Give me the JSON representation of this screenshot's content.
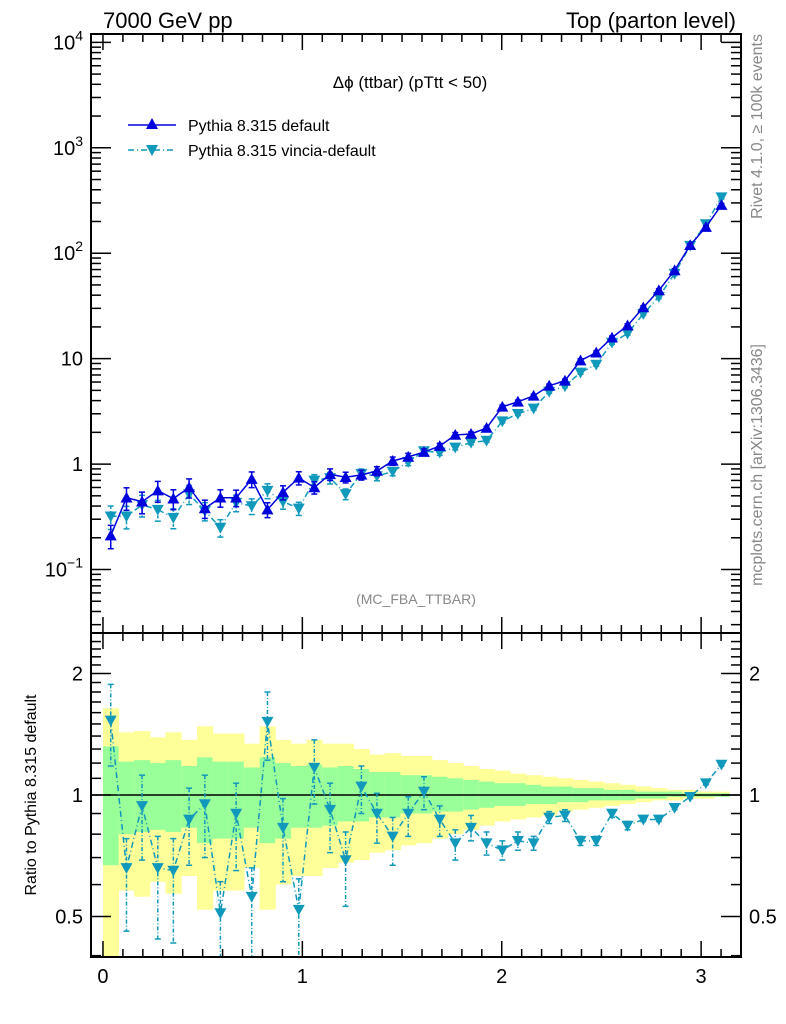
{
  "header": {
    "left": "7000 GeV pp",
    "right": "Top (parton level)"
  },
  "side_labels": {
    "upper": "Rivet 4.1.0, ≥ 100k events",
    "lower": "mcplots.cern.ch [arXiv:1306.3436]"
  },
  "chart_data": [
    {
      "type": "line",
      "panel": "main",
      "title": "Δϕ (ttbar) (pTtt < 50)",
      "analysis_label": "(MC_FBA_TTBAR)",
      "xlabel": "",
      "ylabel": "",
      "yscale": "log",
      "xlim": [
        -0.06,
        3.2
      ],
      "ylim": [
        0.025,
        12000
      ],
      "yticks": [
        {
          "value": 0.1,
          "label": "10^-1"
        },
        {
          "value": 1,
          "label": "1"
        },
        {
          "value": 10,
          "label": "10"
        },
        {
          "value": 100,
          "label": "10^2"
        },
        {
          "value": 1000,
          "label": "10^3"
        },
        {
          "value": 10000,
          "label": "10^4"
        }
      ],
      "legend": {
        "position": "top-left",
        "entries": [
          "Pythia 8.315 default",
          "Pythia 8.315 vincia-default"
        ]
      },
      "x": [
        0.039,
        0.118,
        0.196,
        0.275,
        0.353,
        0.432,
        0.511,
        0.589,
        0.668,
        0.746,
        0.825,
        0.903,
        0.982,
        1.06,
        1.139,
        1.217,
        1.296,
        1.374,
        1.453,
        1.531,
        1.61,
        1.689,
        1.767,
        1.846,
        1.924,
        2.003,
        2.081,
        2.16,
        2.238,
        2.317,
        2.395,
        2.474,
        2.553,
        2.631,
        2.71,
        2.788,
        2.867,
        2.945,
        3.024,
        3.102
      ],
      "series": [
        {
          "name": "Pythia 8.315 default",
          "color": "#0000dd",
          "marker": "triangle-up",
          "linestyle": "solid",
          "values": [
            0.21,
            0.48,
            0.44,
            0.56,
            0.47,
            0.6,
            0.38,
            0.48,
            0.48,
            0.72,
            0.37,
            0.54,
            0.74,
            0.6,
            0.8,
            0.75,
            0.79,
            0.86,
            1.07,
            1.17,
            1.3,
            1.48,
            1.89,
            1.93,
            2.2,
            3.49,
            3.9,
            4.44,
            5.53,
            6.17,
            9.6,
            11.4,
            15.8,
            20.6,
            30.6,
            44.4,
            68.7,
            119,
            177,
            286
          ],
          "rel_err": 0.25
        },
        {
          "name": "Pythia 8.315 vincia-default",
          "color": "#1199bb",
          "marker": "triangle-down",
          "linestyle": "dashdot",
          "values": [
            0.32,
            0.32,
            0.41,
            0.37,
            0.31,
            0.52,
            0.36,
            0.25,
            0.43,
            0.4,
            0.56,
            0.44,
            0.38,
            0.7,
            0.74,
            0.52,
            0.81,
            0.77,
            0.85,
            1.05,
            1.33,
            1.29,
            1.44,
            1.6,
            1.67,
            2.55,
            3.0,
            3.37,
            4.87,
            5.49,
            7.4,
            8.8,
            14.2,
            17.3,
            26.6,
            38.6,
            63.9,
            118,
            189,
            340
          ],
          "rel_err": 0.25
        }
      ]
    },
    {
      "type": "line",
      "panel": "ratio",
      "xlabel": "",
      "ylabel": "Ratio to Pythia 8.315 default",
      "yscale": "log",
      "xlim": [
        -0.06,
        3.2
      ],
      "ylim": [
        0.397,
        2.52
      ],
      "yticks": [
        {
          "value": 0.5,
          "label": "0.5"
        },
        {
          "value": 1,
          "label": "1"
        },
        {
          "value": 2,
          "label": "2"
        }
      ],
      "xticks": [
        {
          "value": 0,
          "label": "0"
        },
        {
          "value": 1,
          "label": "1"
        },
        {
          "value": 2,
          "label": "2"
        },
        {
          "value": 3,
          "label": "3"
        }
      ],
      "reference_line": 1,
      "bands": {
        "yellow_color": "#ffff99",
        "green_color": "#99ff99",
        "yellow_upper": [
          1.64,
          1.43,
          1.44,
          1.39,
          1.43,
          1.37,
          1.48,
          1.42,
          1.42,
          1.34,
          1.48,
          1.37,
          1.34,
          1.37,
          1.34,
          1.34,
          1.3,
          1.26,
          1.27,
          1.25,
          1.25,
          1.22,
          1.2,
          1.18,
          1.16,
          1.15,
          1.13,
          1.12,
          1.11,
          1.1,
          1.09,
          1.08,
          1.07,
          1.06,
          1.05,
          1.04,
          1.03,
          1.03,
          1.02,
          1.02
        ],
        "green_upper": [
          1.32,
          1.21,
          1.22,
          1.2,
          1.22,
          1.18,
          1.24,
          1.21,
          1.21,
          1.17,
          1.24,
          1.2,
          1.18,
          1.19,
          1.17,
          1.18,
          1.16,
          1.14,
          1.14,
          1.12,
          1.12,
          1.11,
          1.1,
          1.09,
          1.08,
          1.07,
          1.07,
          1.06,
          1.05,
          1.05,
          1.04,
          1.04,
          1.03,
          1.03,
          1.02,
          1.02,
          1.02,
          1.01,
          1.01,
          1.01
        ],
        "green_lower": [
          0.67,
          0.8,
          0.81,
          0.82,
          0.81,
          0.83,
          0.76,
          0.78,
          0.78,
          0.83,
          0.76,
          0.78,
          0.83,
          0.83,
          0.84,
          0.86,
          0.86,
          0.88,
          0.88,
          0.9,
          0.9,
          0.91,
          0.91,
          0.92,
          0.93,
          0.94,
          0.94,
          0.95,
          0.95,
          0.96,
          0.96,
          0.97,
          0.97,
          0.97,
          0.98,
          0.98,
          0.99,
          0.99,
          0.99,
          0.99
        ],
        "yellow_lower": [
          0.3,
          0.58,
          0.56,
          0.61,
          0.57,
          0.63,
          0.52,
          0.58,
          0.58,
          0.66,
          0.52,
          0.6,
          0.63,
          0.63,
          0.66,
          0.68,
          0.69,
          0.72,
          0.73,
          0.75,
          0.76,
          0.78,
          0.8,
          0.82,
          0.84,
          0.86,
          0.87,
          0.88,
          0.89,
          0.91,
          0.92,
          0.93,
          0.94,
          0.95,
          0.96,
          0.97,
          0.97,
          0.98,
          0.98,
          0.99
        ]
      },
      "series": [
        {
          "name": "Pythia 8.315 vincia-default / default",
          "color": "#1199bb",
          "marker": "triangle-down",
          "linestyle": "dashdot",
          "values": [
            1.53,
            0.66,
            0.94,
            0.66,
            0.65,
            0.87,
            0.95,
            0.51,
            0.9,
            0.56,
            1.52,
            0.83,
            0.52,
            1.17,
            0.92,
            0.69,
            1.05,
            0.9,
            0.79,
            0.9,
            1.02,
            0.87,
            0.76,
            0.83,
            0.76,
            0.73,
            0.77,
            0.76,
            0.88,
            0.89,
            0.77,
            0.77,
            0.9,
            0.84,
            0.87,
            0.87,
            0.93,
            0.99,
            1.07,
            1.19
          ],
          "err_up": [
            0.35,
            0.12,
            0.18,
            0.13,
            0.13,
            0.17,
            0.17,
            0.1,
            0.17,
            0.1,
            0.28,
            0.15,
            0.1,
            0.2,
            0.15,
            0.12,
            0.13,
            0.11,
            0.09,
            0.09,
            0.09,
            0.07,
            0.06,
            0.06,
            0.05,
            0.04,
            0.04,
            0.03,
            0.03,
            0.03,
            0.02,
            0.02,
            0.02,
            0.02,
            0.01,
            0.01,
            0.01,
            0.01,
            0.01,
            0.01
          ],
          "err_down": [
            0.35,
            0.2,
            0.25,
            0.22,
            0.22,
            0.2,
            0.25,
            0.18,
            0.25,
            0.2,
            0.3,
            0.22,
            0.18,
            0.22,
            0.2,
            0.16,
            0.15,
            0.14,
            0.12,
            0.11,
            0.1,
            0.08,
            0.07,
            0.06,
            0.05,
            0.04,
            0.04,
            0.03,
            0.03,
            0.03,
            0.02,
            0.02,
            0.02,
            0.02,
            0.01,
            0.01,
            0.01,
            0.01,
            0.01,
            0.01
          ]
        }
      ]
    }
  ]
}
